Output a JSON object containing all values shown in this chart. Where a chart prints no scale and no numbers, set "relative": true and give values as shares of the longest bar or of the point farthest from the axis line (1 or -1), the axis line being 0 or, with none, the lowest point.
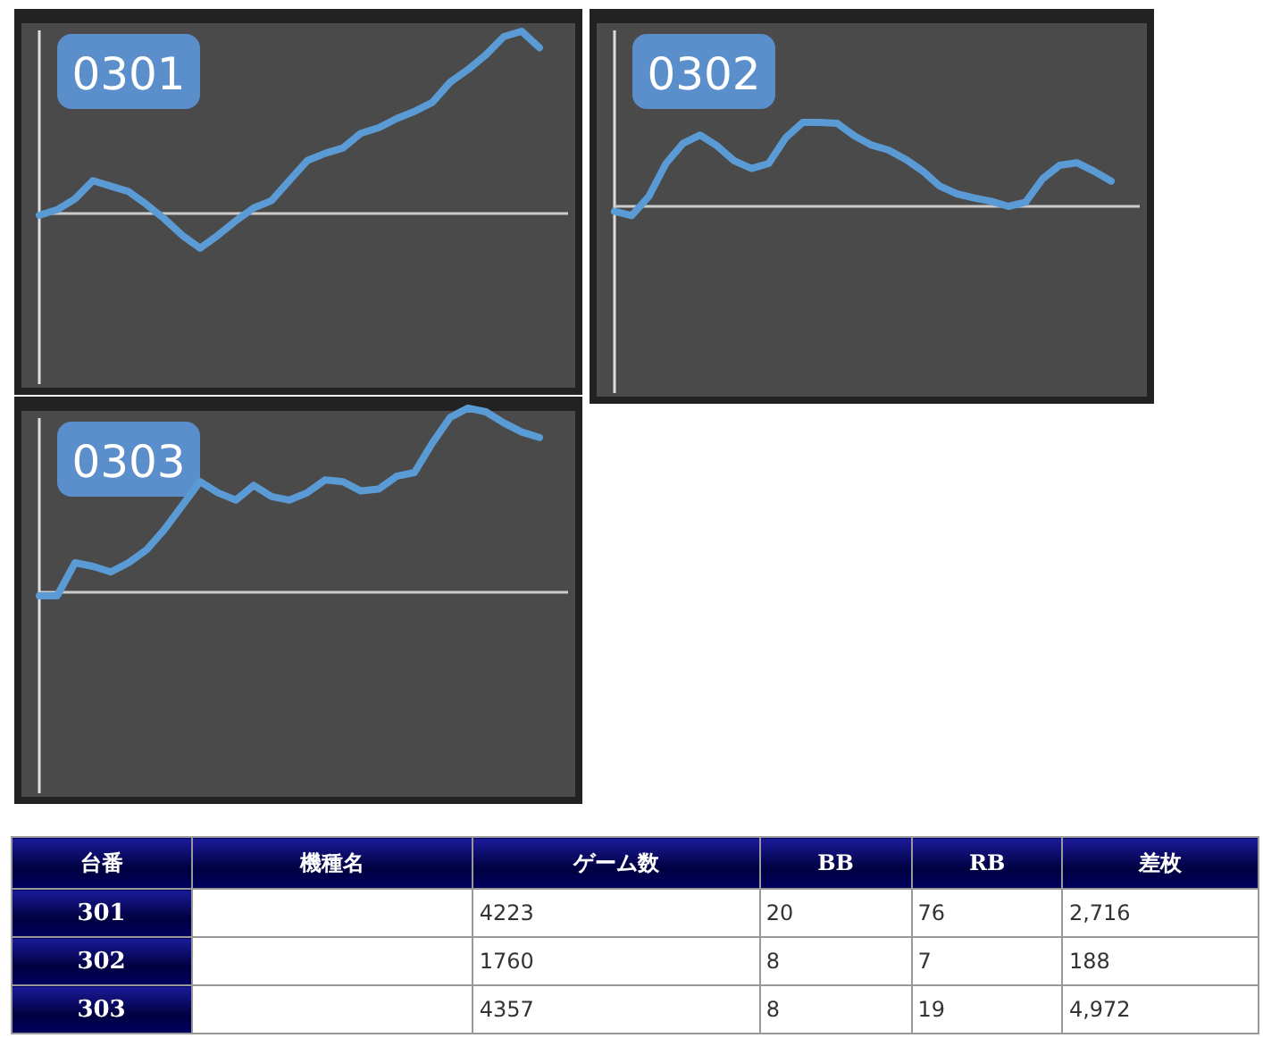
{
  "chart_data": [
    {
      "type": "line",
      "title": "0301",
      "relative": true,
      "categories": [
        null,
        null,
        null,
        null,
        null,
        null,
        null,
        null,
        null,
        null,
        null,
        null,
        null,
        null,
        null,
        null,
        null,
        null,
        null,
        null,
        null,
        null,
        null,
        null,
        null,
        null,
        null,
        null,
        null
      ],
      "values": [
        -0.01,
        0.02,
        0.08,
        0.18,
        0.15,
        0.12,
        0.05,
        -0.03,
        -0.12,
        -0.19,
        -0.12,
        -0.04,
        0.03,
        0.07,
        0.18,
        0.29,
        0.33,
        0.36,
        0.44,
        0.47,
        0.52,
        0.56,
        0.61,
        0.72,
        0.79,
        0.87,
        0.97,
        1.0,
        0.91
      ],
      "color": "#5b9bd5"
    },
    {
      "type": "line",
      "title": "0302",
      "relative": true,
      "categories": [
        null,
        null,
        null,
        null,
        null,
        null,
        null,
        null,
        null,
        null,
        null,
        null,
        null,
        null,
        null,
        null,
        null,
        null,
        null,
        null,
        null,
        null,
        null,
        null,
        null,
        null,
        null,
        null,
        null,
        null
      ],
      "values": [
        -0.06,
        -0.11,
        0.12,
        0.51,
        0.75,
        0.85,
        0.72,
        0.54,
        0.45,
        0.51,
        0.82,
        1.0,
        1.0,
        0.99,
        0.84,
        0.73,
        0.67,
        0.56,
        0.42,
        0.24,
        0.15,
        0.1,
        0.06,
        0.0,
        0.05,
        0.33,
        0.49,
        0.52,
        0.42,
        0.3
      ],
      "color": "#5b9bd5"
    },
    {
      "type": "line",
      "title": "0303",
      "relative": true,
      "categories": [
        null,
        null,
        null,
        null,
        null,
        null,
        null,
        null,
        null,
        null,
        null,
        null,
        null,
        null,
        null,
        null,
        null,
        null,
        null,
        null,
        null,
        null,
        null,
        null,
        null,
        null,
        null,
        null,
        null
      ],
      "values": [
        -0.02,
        -0.02,
        0.16,
        0.14,
        0.11,
        0.16,
        0.23,
        0.34,
        0.47,
        0.6,
        0.54,
        0.5,
        0.58,
        0.52,
        0.5,
        0.54,
        0.61,
        0.6,
        0.55,
        0.56,
        0.63,
        0.65,
        0.81,
        0.95,
        1.0,
        0.98,
        0.92,
        0.87,
        0.84
      ],
      "color": "#5b9bd5"
    },
    {
      "type": "other",
      "categories": [
        "台番",
        "機種名",
        "ゲーム数",
        "BB",
        "RB",
        "差枚"
      ],
      "cell_labels": [
        [
          "301",
          null,
          "4223",
          "20",
          "76",
          "2,716"
        ],
        [
          "302",
          null,
          "1760",
          "8",
          "7",
          "188"
        ],
        [
          "303",
          null,
          "4357",
          "8",
          "19",
          "4,972"
        ]
      ]
    }
  ]
}
